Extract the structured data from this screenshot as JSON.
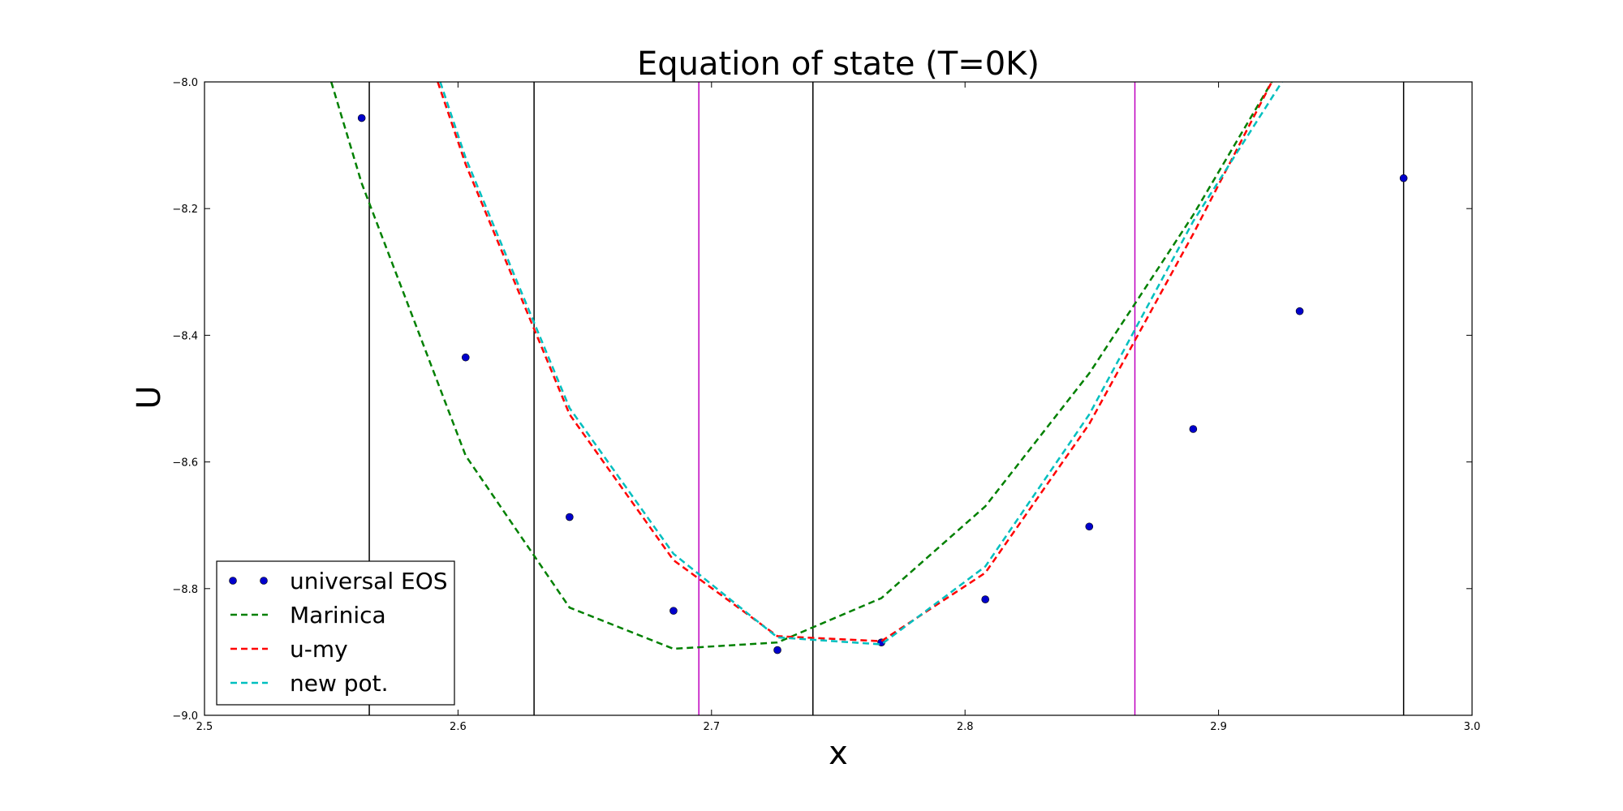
{
  "chart_data": {
    "type": "line",
    "title": "Equation of state (T=0K)",
    "xlabel": "x",
    "ylabel": "U",
    "xlim": [
      2.5,
      3.0
    ],
    "ylim": [
      -9.0,
      -8.0
    ],
    "xticks": [
      2.5,
      2.6,
      2.7,
      2.8,
      2.9,
      3.0
    ],
    "xtick_labels": [
      "2.5",
      "2.6",
      "2.7",
      "2.8",
      "2.9",
      "3.0"
    ],
    "yticks": [
      -9.0,
      -8.8,
      -8.6,
      -8.4,
      -8.2,
      -8.0
    ],
    "ytick_labels": [
      "−9.0",
      "−8.8",
      "−8.6",
      "−8.4",
      "−8.2",
      "−8.0"
    ],
    "grid": false,
    "legend_position": "lower-left",
    "vlines": [
      {
        "x": 2.565,
        "color": "#000000"
      },
      {
        "x": 2.63,
        "color": "#000000"
      },
      {
        "x": 2.74,
        "color": "#000000"
      },
      {
        "x": 2.973,
        "color": "#000000"
      },
      {
        "x": 2.695,
        "color": "#bf00bf"
      },
      {
        "x": 2.867,
        "color": "#bf00bf"
      }
    ],
    "series": [
      {
        "name": "universal EOS",
        "style": "markers",
        "color": "#0000cc",
        "x": [
          2.562,
          2.603,
          2.644,
          2.685,
          2.726,
          2.767,
          2.808,
          2.849,
          2.89,
          2.932,
          2.973
        ],
        "y": [
          -8.057,
          -8.435,
          -8.687,
          -8.835,
          -8.897,
          -8.885,
          -8.817,
          -8.702,
          -8.548,
          -8.362,
          -8.152
        ]
      },
      {
        "name": "Marinica",
        "style": "dashed",
        "color": "#008000",
        "x": [
          2.55,
          2.562,
          2.603,
          2.644,
          2.685,
          2.726,
          2.767,
          2.808,
          2.849,
          2.89,
          2.921
        ],
        "y": [
          -8.0,
          -8.16,
          -8.59,
          -8.83,
          -8.895,
          -8.885,
          -8.815,
          -8.67,
          -8.46,
          -8.21,
          -8.0
        ]
      },
      {
        "name": "u-my",
        "style": "dashed",
        "color": "#ff0000",
        "x": [
          2.592,
          2.603,
          2.644,
          2.685,
          2.726,
          2.767,
          2.808,
          2.849,
          2.89,
          2.921
        ],
        "y": [
          -8.0,
          -8.13,
          -8.525,
          -8.755,
          -8.875,
          -8.883,
          -8.775,
          -8.54,
          -8.24,
          -8.0
        ]
      },
      {
        "name": "new pot.",
        "style": "dashed",
        "color": "#00bfbf",
        "x": [
          2.593,
          2.603,
          2.644,
          2.685,
          2.726,
          2.767,
          2.808,
          2.849,
          2.89,
          2.925
        ],
        "y": [
          -8.0,
          -8.12,
          -8.515,
          -8.745,
          -8.877,
          -8.888,
          -8.765,
          -8.525,
          -8.22,
          -8.0
        ]
      }
    ]
  }
}
